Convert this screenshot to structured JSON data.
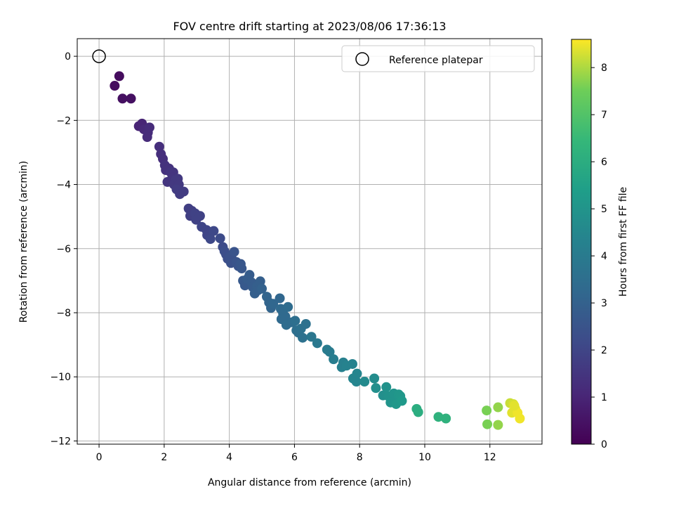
{
  "chart_data": {
    "type": "scatter",
    "title": "FOV centre drift starting at 2023/08/06 17:36:13",
    "xlabel": "Angular distance from reference (arcmin)",
    "ylabel": "Rotation from reference (arcmin)",
    "xlim": [
      -0.67,
      13.6
    ],
    "ylim": [
      -12.1,
      0.55
    ],
    "xticks": [
      0,
      2,
      4,
      6,
      8,
      10,
      12
    ],
    "yticks": [
      0,
      -2,
      -4,
      -6,
      -8,
      -10,
      -12
    ],
    "xtick_labels": [
      "0",
      "2",
      "4",
      "6",
      "8",
      "10",
      "12"
    ],
    "ytick_labels": [
      "0",
      "−2",
      "−4",
      "−6",
      "−8",
      "−10",
      "−12"
    ],
    "grid": true,
    "legend": {
      "position": "top-right",
      "entries": [
        "Reference platepar"
      ]
    },
    "reference_point": {
      "x": 0,
      "y": 0
    },
    "colorbar": {
      "label": "Hours from first FF file",
      "range": [
        0,
        8.6
      ],
      "ticks": [
        0,
        1,
        2,
        3,
        4,
        5,
        6,
        7,
        8
      ],
      "colormap": "viridis"
    },
    "points": [
      [
        0.62,
        -0.62,
        0.3
      ],
      [
        0.48,
        -0.92,
        0.3
      ],
      [
        0.72,
        -1.32,
        0.4
      ],
      [
        0.98,
        -1.32,
        0.4
      ],
      [
        1.22,
        -2.18,
        1.0
      ],
      [
        1.32,
        -2.1,
        1.0
      ],
      [
        1.38,
        -2.28,
        1.1
      ],
      [
        1.5,
        -2.38,
        1.2
      ],
      [
        1.55,
        -2.22,
        1.2
      ],
      [
        1.48,
        -2.52,
        1.2
      ],
      [
        1.85,
        -2.82,
        1.3
      ],
      [
        1.9,
        -3.05,
        1.3
      ],
      [
        1.96,
        -3.2,
        1.3
      ],
      [
        2.02,
        -3.4,
        1.4
      ],
      [
        2.05,
        -3.55,
        1.4
      ],
      [
        2.15,
        -3.5,
        1.4
      ],
      [
        2.2,
        -3.62,
        1.5
      ],
      [
        2.28,
        -3.62,
        1.5
      ],
      [
        2.25,
        -3.78,
        1.5
      ],
      [
        2.1,
        -3.92,
        1.5
      ],
      [
        2.35,
        -3.85,
        1.6
      ],
      [
        2.3,
        -4.0,
        1.6
      ],
      [
        2.42,
        -3.82,
        1.6
      ],
      [
        2.45,
        -4.0,
        1.6
      ],
      [
        2.38,
        -4.15,
        1.7
      ],
      [
        2.48,
        -4.3,
        1.7
      ],
      [
        2.6,
        -4.22,
        1.7
      ],
      [
        2.75,
        -4.75,
        1.8
      ],
      [
        2.85,
        -4.82,
        1.8
      ],
      [
        2.8,
        -4.98,
        1.8
      ],
      [
        2.95,
        -4.9,
        1.9
      ],
      [
        2.98,
        -5.1,
        1.9
      ],
      [
        3.1,
        -4.98,
        1.9
      ],
      [
        3.15,
        -5.32,
        2.0
      ],
      [
        3.3,
        -5.42,
        2.0
      ],
      [
        3.32,
        -5.58,
        2.0
      ],
      [
        3.42,
        -5.7,
        2.1
      ],
      [
        3.52,
        -5.45,
        2.1
      ],
      [
        3.72,
        -5.68,
        2.2
      ],
      [
        3.8,
        -5.95,
        2.2
      ],
      [
        3.85,
        -6.08,
        2.3
      ],
      [
        3.9,
        -6.18,
        2.3
      ],
      [
        3.95,
        -6.32,
        2.3
      ],
      [
        4.02,
        -6.25,
        2.4
      ],
      [
        4.1,
        -6.35,
        2.4
      ],
      [
        4.05,
        -6.45,
        2.4
      ],
      [
        4.15,
        -6.1,
        2.5
      ],
      [
        4.22,
        -6.42,
        2.5
      ],
      [
        4.28,
        -6.55,
        2.5
      ],
      [
        4.35,
        -6.48,
        2.6
      ],
      [
        4.38,
        -6.62,
        2.6
      ],
      [
        4.42,
        -7.0,
        2.7
      ],
      [
        4.48,
        -7.15,
        2.7
      ],
      [
        4.55,
        -6.95,
        2.8
      ],
      [
        4.62,
        -6.82,
        2.8
      ],
      [
        4.68,
        -7.05,
        2.8
      ],
      [
        4.72,
        -7.2,
        2.8
      ],
      [
        4.78,
        -7.4,
        2.9
      ],
      [
        4.85,
        -7.18,
        2.9
      ],
      [
        4.88,
        -7.3,
        2.9
      ],
      [
        4.95,
        -7.02,
        2.9
      ],
      [
        5.0,
        -7.25,
        3.0
      ],
      [
        5.15,
        -7.5,
        3.1
      ],
      [
        5.22,
        -7.68,
        3.1
      ],
      [
        5.28,
        -7.85,
        3.1
      ],
      [
        5.35,
        -7.72,
        3.2
      ],
      [
        5.55,
        -7.55,
        3.2
      ],
      [
        5.58,
        -7.88,
        3.3
      ],
      [
        5.65,
        -8.02,
        3.3
      ],
      [
        5.6,
        -8.2,
        3.3
      ],
      [
        5.72,
        -8.12,
        3.3
      ],
      [
        5.75,
        -8.38,
        3.4
      ],
      [
        5.8,
        -7.82,
        3.4
      ],
      [
        5.92,
        -8.3,
        3.4
      ],
      [
        6.02,
        -8.25,
        3.5
      ],
      [
        6.06,
        -8.55,
        3.5
      ],
      [
        6.12,
        -8.62,
        3.5
      ],
      [
        6.2,
        -8.5,
        3.6
      ],
      [
        6.25,
        -8.78,
        3.6
      ],
      [
        6.35,
        -8.35,
        3.6
      ],
      [
        6.52,
        -8.75,
        3.8
      ],
      [
        6.7,
        -8.95,
        3.9
      ],
      [
        7.0,
        -9.15,
        4.0
      ],
      [
        7.08,
        -9.22,
        4.0
      ],
      [
        7.2,
        -9.45,
        4.1
      ],
      [
        7.45,
        -9.7,
        4.2
      ],
      [
        7.5,
        -9.55,
        4.2
      ],
      [
        7.6,
        -9.65,
        4.3
      ],
      [
        7.78,
        -9.6,
        4.3
      ],
      [
        7.8,
        -10.05,
        4.4
      ],
      [
        7.9,
        -10.15,
        4.4
      ],
      [
        7.92,
        -9.9,
        4.4
      ],
      [
        8.15,
        -10.15,
        4.6
      ],
      [
        8.45,
        -10.05,
        4.7
      ],
      [
        8.5,
        -10.35,
        4.8
      ],
      [
        8.72,
        -10.58,
        4.8
      ],
      [
        8.82,
        -10.32,
        4.9
      ],
      [
        8.88,
        -10.6,
        4.9
      ],
      [
        8.95,
        -10.8,
        5.0
      ],
      [
        9.05,
        -10.52,
        5.0
      ],
      [
        9.1,
        -10.72,
        5.0
      ],
      [
        9.12,
        -10.85,
        5.1
      ],
      [
        9.2,
        -10.55,
        5.1
      ],
      [
        9.25,
        -10.6,
        5.1
      ],
      [
        9.3,
        -10.75,
        5.2
      ],
      [
        9.75,
        -11.0,
        6.0
      ],
      [
        9.8,
        -11.1,
        6.0
      ],
      [
        10.42,
        -11.25,
        6.2
      ],
      [
        10.65,
        -11.3,
        6.2
      ],
      [
        11.9,
        -11.05,
        7.6
      ],
      [
        11.92,
        -11.48,
        7.6
      ],
      [
        12.25,
        -10.95,
        7.8
      ],
      [
        12.25,
        -11.5,
        7.8
      ],
      [
        12.62,
        -10.82,
        8.2
      ],
      [
        12.72,
        -10.85,
        8.3
      ],
      [
        12.78,
        -11.0,
        8.4
      ],
      [
        12.68,
        -11.12,
        8.4
      ],
      [
        12.85,
        -11.12,
        8.5
      ],
      [
        12.92,
        -11.3,
        8.5
      ],
      [
        12.75,
        -10.9,
        8.4
      ]
    ]
  }
}
